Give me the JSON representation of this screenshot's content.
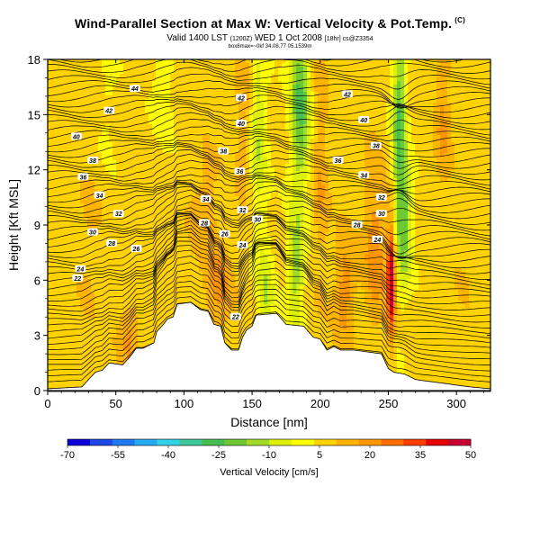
{
  "title": {
    "main": "Wind-Parallel Section at Max W: Vertical Velocity & Pot.Temp.",
    "units": "(C)",
    "valid_prefix": "Valid 1400 LST",
    "valid_small": "(1200Z)",
    "valid_date": "WED 1 Oct 2008",
    "valid_run": "[18hr] cs@Z3354",
    "info": "box8max=~0kf 34.08,77 05.1539m"
  },
  "chart_data": {
    "type": "heatmap",
    "xlabel": "Distance [nm]",
    "ylabel": "Height [Kft MSL]",
    "xlim": [
      0,
      325
    ],
    "ylim": [
      0,
      18
    ],
    "x_ticks": [
      "0",
      "50",
      "100",
      "150",
      "200",
      "250",
      "300"
    ],
    "x_tick_values": [
      0,
      50,
      100,
      150,
      200,
      250,
      300
    ],
    "y_ticks": [
      "0",
      "3",
      "6",
      "9",
      "12",
      "15",
      "18"
    ],
    "y_tick_values": [
      0,
      3,
      6,
      9,
      12,
      15,
      18
    ],
    "colorbar": {
      "label": "Vertical Velocity [cm/s]",
      "tick_labels": [
        "-70",
        "-55",
        "-40",
        "-25",
        "-10",
        "5",
        "20",
        "35",
        "50"
      ],
      "tick_values": [
        -70,
        -55,
        -40,
        -25,
        -10,
        5,
        20,
        35,
        50
      ],
      "colors": [
        "#0a00d8",
        "#1e46e6",
        "#1e78f0",
        "#28aaf0",
        "#32d2e6",
        "#3cc89b",
        "#46be50",
        "#6ec832",
        "#a0dc28",
        "#dcf00a",
        "#ffff00",
        "#ffd200",
        "#ffb400",
        "#ff9600",
        "#ff6e00",
        "#ff3c00",
        "#e60000",
        "#c80032"
      ]
    },
    "terrain_kft": [
      [
        0,
        0.1
      ],
      [
        25,
        0.2
      ],
      [
        30,
        0.6
      ],
      [
        35,
        1.0
      ],
      [
        40,
        1.1
      ],
      [
        45,
        1.5
      ],
      [
        55,
        1.4
      ],
      [
        60,
        1.8
      ],
      [
        65,
        2.3
      ],
      [
        70,
        2.3
      ],
      [
        78,
        2.6
      ],
      [
        80,
        3.2
      ],
      [
        85,
        3.6
      ],
      [
        88,
        3.9
      ],
      [
        92,
        4.0
      ],
      [
        95,
        4.7
      ],
      [
        105,
        4.8
      ],
      [
        112,
        4.4
      ],
      [
        118,
        4.3
      ],
      [
        122,
        3.6
      ],
      [
        127,
        3.5
      ],
      [
        130,
        2.6
      ],
      [
        135,
        2.2
      ],
      [
        140,
        2.2
      ],
      [
        143,
        2.9
      ],
      [
        146,
        3.3
      ],
      [
        150,
        3.5
      ],
      [
        153,
        4.1
      ],
      [
        168,
        4.2
      ],
      [
        175,
        3.6
      ],
      [
        188,
        3.5
      ],
      [
        195,
        2.9
      ],
      [
        200,
        2.8
      ],
      [
        205,
        2.2
      ],
      [
        210,
        2.4
      ],
      [
        215,
        2.2
      ],
      [
        225,
        2.2
      ],
      [
        235,
        2.1
      ],
      [
        245,
        2.0
      ],
      [
        250,
        1.2
      ],
      [
        254,
        1.0
      ],
      [
        262,
        0.9
      ],
      [
        270,
        0.6
      ],
      [
        290,
        0.4
      ],
      [
        310,
        0.2
      ],
      [
        325,
        0.1
      ]
    ],
    "velocity_features": [
      {
        "x": 44,
        "z": 16,
        "w": -5,
        "sx": 6,
        "sz": 3
      },
      {
        "x": 85,
        "z": 17,
        "w": -10,
        "sx": 7,
        "sz": 3
      },
      {
        "x": 143,
        "z": 15,
        "w": 10,
        "sx": 5,
        "sz": 5
      },
      {
        "x": 155,
        "z": 14,
        "w": -15,
        "sx": 6,
        "sz": 5
      },
      {
        "x": 160,
        "z": 5.2,
        "w": -15,
        "sx": 6,
        "sz": 3
      },
      {
        "x": 185,
        "z": 15.5,
        "w": -30,
        "sx": 7,
        "sz": 5
      },
      {
        "x": 182,
        "z": 6.5,
        "w": -20,
        "sx": 6,
        "sz": 3
      },
      {
        "x": 200,
        "z": 12,
        "w": 10,
        "sx": 6,
        "sz": 6
      },
      {
        "x": 240,
        "z": 8,
        "w": 15,
        "sx": 8,
        "sz": 5
      },
      {
        "x": 252,
        "z": 6,
        "w": 45,
        "sx": 3,
        "sz": 3
      },
      {
        "x": 258,
        "z": 14,
        "w": -30,
        "sx": 5,
        "sz": 7
      },
      {
        "x": 263,
        "z": 9,
        "w": -20,
        "sx": 5,
        "sz": 3
      },
      {
        "x": 290,
        "z": 15,
        "w": 12,
        "sx": 6,
        "sz": 4
      },
      {
        "x": 125,
        "z": 5.5,
        "w": 12,
        "sx": 10,
        "sz": 2.5
      },
      {
        "x": 218,
        "z": 5.5,
        "w": 15,
        "sx": 8,
        "sz": 3
      },
      {
        "x": 60,
        "z": 3,
        "w": 12,
        "sx": 8,
        "sz": 2
      },
      {
        "x": 30,
        "z": 8,
        "w": 5,
        "sx": 10,
        "sz": 4
      },
      {
        "x": 305,
        "z": 7,
        "w": 3,
        "sx": 8,
        "sz": 4
      },
      {
        "x": 115,
        "z": 10,
        "w": 8,
        "sx": 12,
        "sz": 3
      }
    ],
    "isentrope_labels": [
      {
        "text": "44",
        "x": 64,
        "z": 16.4
      },
      {
        "text": "42",
        "x": 45,
        "z": 15.2
      },
      {
        "text": "40",
        "x": 21,
        "z": 13.8
      },
      {
        "text": "38",
        "x": 33,
        "z": 12.5
      },
      {
        "text": "36",
        "x": 26,
        "z": 11.6
      },
      {
        "text": "34",
        "x": 38,
        "z": 10.6
      },
      {
        "text": "32",
        "x": 52,
        "z": 9.6
      },
      {
        "text": "30",
        "x": 33,
        "z": 8.6
      },
      {
        "text": "28",
        "x": 47,
        "z": 8.0
      },
      {
        "text": "26",
        "x": 65,
        "z": 7.7
      },
      {
        "text": "24",
        "x": 24,
        "z": 6.6
      },
      {
        "text": "22",
        "x": 22,
        "z": 6.1
      },
      {
        "text": "42",
        "x": 142,
        "z": 15.9
      },
      {
        "text": "40",
        "x": 142,
        "z": 14.5
      },
      {
        "text": "38",
        "x": 129,
        "z": 13.0
      },
      {
        "text": "36",
        "x": 141,
        "z": 11.9
      },
      {
        "text": "34",
        "x": 116,
        "z": 10.4
      },
      {
        "text": "32",
        "x": 143,
        "z": 9.8
      },
      {
        "text": "30",
        "x": 154,
        "z": 9.3
      },
      {
        "text": "28",
        "x": 115,
        "z": 9.1
      },
      {
        "text": "26",
        "x": 130,
        "z": 8.5
      },
      {
        "text": "24",
        "x": 143,
        "z": 7.9
      },
      {
        "text": "22",
        "x": 138,
        "z": 4.0
      },
      {
        "text": "42",
        "x": 220,
        "z": 16.1
      },
      {
        "text": "40",
        "x": 232,
        "z": 14.7
      },
      {
        "text": "38",
        "x": 241,
        "z": 13.3
      },
      {
        "text": "36",
        "x": 213,
        "z": 12.5
      },
      {
        "text": "34",
        "x": 232,
        "z": 11.7
      },
      {
        "text": "32",
        "x": 245,
        "z": 10.5
      },
      {
        "text": "30",
        "x": 245,
        "z": 9.6
      },
      {
        "text": "28",
        "x": 227,
        "z": 9.0
      },
      {
        "text": "24",
        "x": 242,
        "z": 8.2
      }
    ]
  }
}
